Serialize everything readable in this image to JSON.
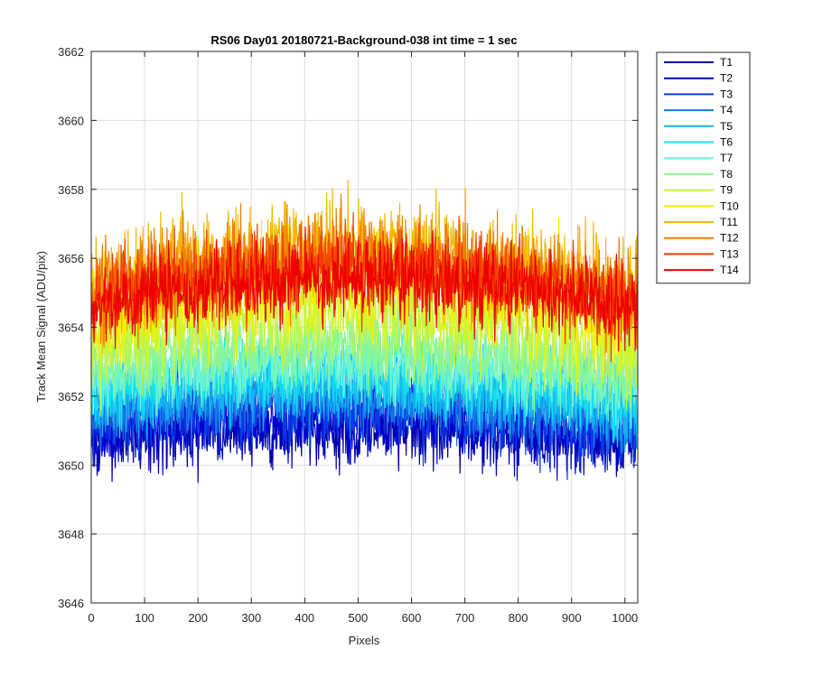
{
  "chart_data": {
    "type": "line",
    "title": "RS06 Day01 20180721-Background-038 int time = 1 sec",
    "xlabel": "Pixels",
    "ylabel": "Track Mean Signal (ADU/pix)",
    "xlim": [
      0,
      1024
    ],
    "ylim": [
      3646,
      3662
    ],
    "xticks": [
      "0",
      "100",
      "200",
      "300",
      "400",
      "500",
      "600",
      "700",
      "800",
      "900",
      "1000"
    ],
    "yticks": [
      "3646",
      "3648",
      "3650",
      "3652",
      "3654",
      "3656",
      "3658",
      "3660",
      "3662"
    ],
    "grid": true,
    "legend_position": "outside-top-right",
    "x_range": [
      1,
      1024
    ],
    "series": [
      {
        "name": "T1",
        "color": "#0000aa",
        "mean_start": 3650.8,
        "mean_mid": 3651.1,
        "mean_end": 3650.6,
        "noise": 0.75
      },
      {
        "name": "T2",
        "color": "#0000cc",
        "mean_start": 3651.0,
        "mean_mid": 3651.4,
        "mean_end": 3650.8,
        "noise": 0.75
      },
      {
        "name": "T3",
        "color": "#0a3be6",
        "mean_start": 3651.3,
        "mean_mid": 3651.7,
        "mean_end": 3651.0,
        "noise": 0.75
      },
      {
        "name": "T4",
        "color": "#1878e8",
        "mean_start": 3651.6,
        "mean_mid": 3652.0,
        "mean_end": 3651.3,
        "noise": 0.75
      },
      {
        "name": "T5",
        "color": "#14b4f0",
        "mean_start": 3651.9,
        "mean_mid": 3652.3,
        "mean_end": 3651.6,
        "noise": 0.75
      },
      {
        "name": "T6",
        "color": "#17e0f0",
        "mean_start": 3652.1,
        "mean_mid": 3652.6,
        "mean_end": 3651.8,
        "noise": 0.75
      },
      {
        "name": "T7",
        "color": "#6ff5d4",
        "mean_start": 3652.5,
        "mean_mid": 3653.0,
        "mean_end": 3652.2,
        "noise": 0.75
      },
      {
        "name": "T8",
        "color": "#8ef590",
        "mean_start": 3653.0,
        "mean_mid": 3653.5,
        "mean_end": 3652.7,
        "noise": 0.75
      },
      {
        "name": "T9",
        "color": "#c9f53a",
        "mean_start": 3653.6,
        "mean_mid": 3654.4,
        "mean_end": 3653.3,
        "noise": 0.95
      },
      {
        "name": "T10",
        "color": "#f2f200",
        "mean_start": 3654.3,
        "mean_mid": 3655.4,
        "mean_end": 3654.0,
        "noise": 1.05
      },
      {
        "name": "T11",
        "color": "#f5b700",
        "mean_start": 3655.0,
        "mean_mid": 3656.2,
        "mean_end": 3654.8,
        "noise": 1.05
      },
      {
        "name": "T12",
        "color": "#f07c00",
        "mean_start": 3655.0,
        "mean_mid": 3656.0,
        "mean_end": 3654.8,
        "noise": 0.95
      },
      {
        "name": "T13",
        "color": "#f23c00",
        "mean_start": 3654.8,
        "mean_mid": 3655.7,
        "mean_end": 3654.6,
        "noise": 0.85
      },
      {
        "name": "T14",
        "color": "#ee0000",
        "mean_start": 3654.6,
        "mean_mid": 3655.4,
        "mean_end": 3654.5,
        "noise": 0.8
      }
    ]
  }
}
